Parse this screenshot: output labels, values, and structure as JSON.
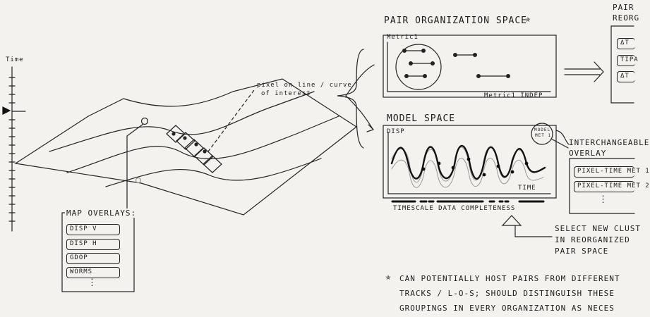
{
  "map": {
    "axis_label": "Time",
    "pixel_annotation_1": "pixel on line / curve",
    "pixel_annotation_2": "of interest"
  },
  "map_overlays": {
    "title": "MAP OVERLAYS:",
    "items": [
      "DISP V",
      "DISP H",
      "GDOP",
      "WORMS"
    ],
    "more": "⋮"
  },
  "pair_space": {
    "title": "PAIR ORGANIZATION SPACE",
    "star": "✯",
    "y_label": "Metric1",
    "x_label": "Metric1 INDEP"
  },
  "pair_reorg": {
    "title_1": "PAIR",
    "title_2": "REORG",
    "items": [
      "ΔT",
      "TIPA",
      "ΔT"
    ]
  },
  "model_space": {
    "title": "MODEL SPACE",
    "y_label": "DISP",
    "x_label": "TIME",
    "badge_1": "MODEL",
    "badge_2": "MET 1",
    "completeness_label": "TIMESCALE DATA COMPLETENESS"
  },
  "interchangeable": {
    "title_1": "INTERCHANGEABLE",
    "title_2": "OVERLAY",
    "items": [
      "PIXEL-TIME MET 1",
      "PIXEL-TIME MET 2"
    ],
    "more": "⋮"
  },
  "select_note": {
    "line_1": "SELECT NEW CLUST",
    "line_2": "IN REORGANIZED",
    "line_3": "PAIR SPACE"
  },
  "footnote": {
    "star": "✯",
    "line_1": "CAN POTENTIALLY HOST PAIRS FROM DIFFERENT",
    "line_2": "TRACKS / L-O-S; SHOULD DISTINGUISH THESE",
    "line_3": "GROUPINGS IN EVERY ORGANIZATION AS NECES"
  }
}
